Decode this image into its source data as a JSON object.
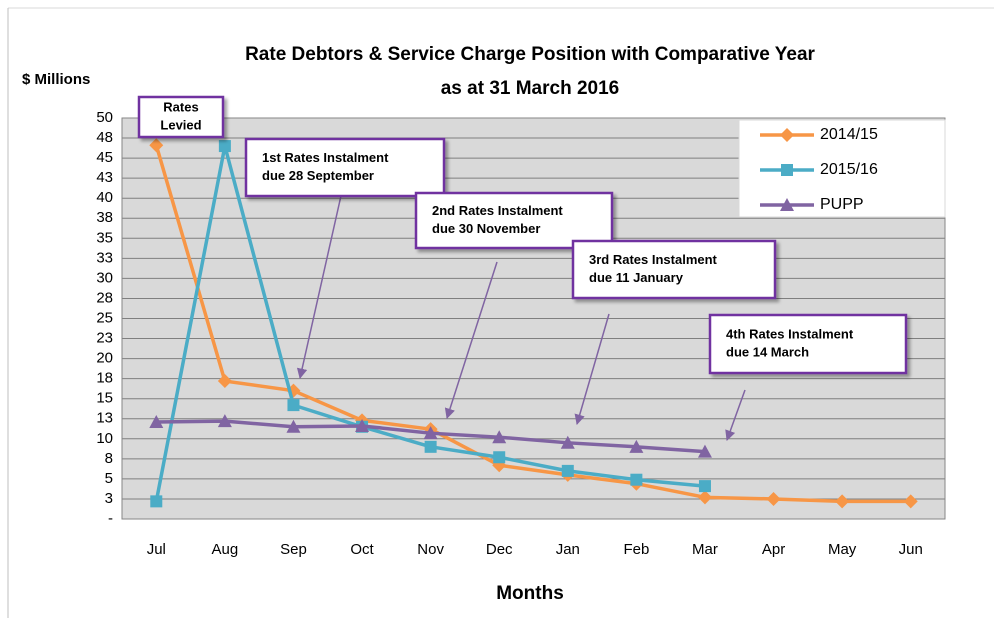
{
  "chart_data": {
    "type": "line",
    "title": [
      "Rate Debtors & Service Charge Position with Comparative Year",
      "as at 31 March 2016"
    ],
    "y_axis_label": "$ Millions",
    "x_axis_label": "Months",
    "categories": [
      "Jul",
      "Aug",
      "Sep",
      "Oct",
      "Nov",
      "Dec",
      "Jan",
      "Feb",
      "Mar",
      "Apr",
      "May",
      "Jun"
    ],
    "series": [
      {
        "name": "2014/15",
        "color": "#f79646",
        "marker": "diamond",
        "values": [
          46.6,
          17.2,
          16.0,
          12.3,
          11.2,
          6.7,
          5.5,
          4.4,
          2.7,
          2.5,
          2.2,
          2.2
        ]
      },
      {
        "name": "2015/16",
        "color": "#4bacc6",
        "marker": "square",
        "values": [
          2.2,
          46.5,
          14.2,
          11.5,
          9.0,
          7.7,
          6.0,
          4.9,
          4.1,
          null,
          null,
          null
        ]
      },
      {
        "name": "PUPP",
        "color": "#8064a2",
        "marker": "triangle",
        "values": [
          12.1,
          12.2,
          11.5,
          11.6,
          10.7,
          10.2,
          9.5,
          9.0,
          8.4,
          null,
          null,
          null
        ]
      }
    ],
    "ylim": [
      0,
      50
    ],
    "yticks": [
      {
        "value": 0,
        "label": "-"
      },
      {
        "value": 2.5,
        "label": "3"
      },
      5,
      {
        "value": 7.5,
        "label": "8"
      },
      10,
      {
        "value": 12.5,
        "label": "13"
      },
      15,
      {
        "value": 17.5,
        "label": "18"
      },
      20,
      {
        "value": 22.5,
        "label": "23"
      },
      25,
      {
        "value": 27.5,
        "label": "28"
      },
      30,
      {
        "value": 32.5,
        "label": "33"
      },
      35,
      {
        "value": 37.5,
        "label": "38"
      },
      40,
      {
        "value": 42.5,
        "label": "43"
      },
      45,
      {
        "value": 47.5,
        "label": "48"
      },
      50
    ],
    "grid": true,
    "legend": "upper right",
    "annotations": [
      {
        "lines": [
          "Rates",
          "Levied"
        ]
      },
      {
        "lines": [
          "1st Rates Instalment",
          "due 28 September"
        ]
      },
      {
        "lines": [
          "2nd Rates Instalment",
          "due 30 November"
        ]
      },
      {
        "lines": [
          "3rd Rates Instalment",
          "due 11 January"
        ]
      },
      {
        "lines": [
          "4th Rates Instalment",
          "due 14 March"
        ]
      }
    ]
  }
}
